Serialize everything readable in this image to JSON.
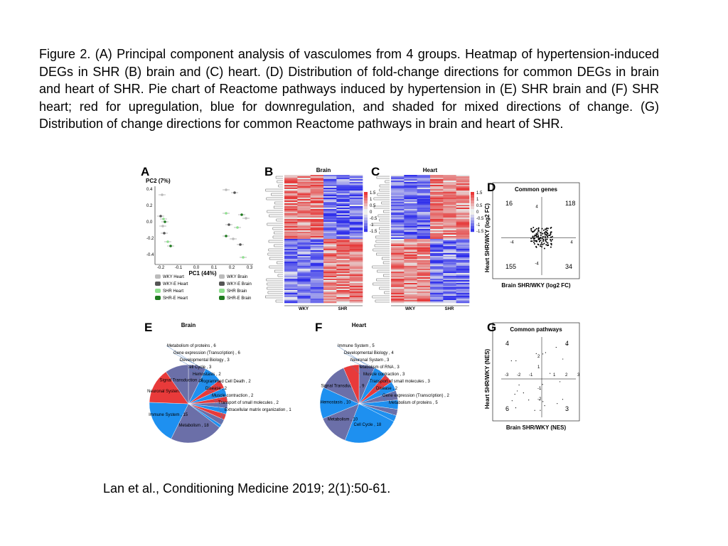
{
  "caption": "Figure 2. (A) Principal component analysis of vasculomes from 4 groups. Heatmap of hypertension-induced DEGs in SHR (B) brain and (C) heart. (D) Distribution of fold-change directions for common DEGs in brain and heart of SHR. Pie chart of Reactome pathways induced by hypertension in (E) SHR brain and (F) SHR heart; red for upregulation, blue for downregulation, and shaded for mixed directions of change. (G) Distribution of change directions for common Reactome pathways in brain and heart of SHR.",
  "citation": "Lan et al., Conditioning Medicine 2019; 2(1):50-61.",
  "panel_a": {
    "letter": "A",
    "y_label": "PC2 (7%)",
    "x_label": "PC1 (44%)",
    "yticks": [
      "0.4",
      "0.2",
      "0.0",
      "-0.2",
      "-0.4"
    ],
    "xticks": [
      "-0.2",
      "-0.1",
      "0.0",
      "0.1",
      "0.2",
      "0.3"
    ],
    "legend": [
      {
        "name": "WKY Heart",
        "color": "#bbbbbb"
      },
      {
        "name": "WKY-E Heart",
        "color": "#555555"
      },
      {
        "name": "SHR Heart",
        "color": "#8fe08f"
      },
      {
        "name": "SHR-E Heart",
        "color": "#1f7a1f"
      },
      {
        "name": "WKY Brain",
        "color": "#bbbbbb"
      },
      {
        "name": "WKY-E Brain",
        "color": "#555555"
      },
      {
        "name": "SHR Brain",
        "color": "#8fe08f"
      },
      {
        "name": "SHR-E Brain",
        "color": "#1f7a1f"
      }
    ]
  },
  "panel_b": {
    "letter": "B",
    "title": "Brain",
    "columns": [
      "WKY",
      "SHR"
    ],
    "scale": [
      "1.5",
      "1",
      "0.5",
      "0",
      "-0.5",
      "-1",
      "-1.5"
    ]
  },
  "panel_c": {
    "letter": "C",
    "title": "Heart",
    "columns": [
      "WKY",
      "SHR"
    ],
    "scale": [
      "1.5",
      "1",
      "0.5",
      "0",
      "-0.5",
      "-1",
      "-1.5"
    ]
  },
  "panel_d": {
    "letter": "D",
    "title": "Common genes",
    "x_label": "Brain SHR/WKY (log2 FC)",
    "y_label": "Heart SHR/WKY (log2 FC)",
    "counts": [
      "16",
      "118",
      "155",
      "34"
    ],
    "ticks": [
      "4",
      "-4",
      "-4",
      "4"
    ]
  },
  "panel_e": {
    "letter": "E",
    "title": "Brain",
    "slices": [
      {
        "label": "Metabolism of proteins , 6",
        "value": 6,
        "color": "#6b6fa8"
      },
      {
        "label": "Gene expression (Transcription) , 6",
        "value": 6,
        "color": "#1e90f0"
      },
      {
        "label": "Developmental Biology , 3",
        "value": 3,
        "color": "#e83a3a"
      },
      {
        "label": "Cell Cycle , 3",
        "value": 3,
        "color": "#1e90f0"
      },
      {
        "label": "Hemostasis , 2",
        "value": 2,
        "color": "#e83a3a"
      },
      {
        "label": "Programmed Cell Death , 2",
        "value": 2,
        "color": "#6b6fa8"
      },
      {
        "label": "Disease , 2",
        "value": 2,
        "color": "#1e90f0"
      },
      {
        "label": "Muscle contraction , 2",
        "value": 2,
        "color": "#e83a3a"
      },
      {
        "label": "Transport of small molecules , 2",
        "value": 2,
        "color": "#6b6fa8"
      },
      {
        "label": "Extracellular matrix organization , 1",
        "value": 1,
        "color": "#1e90f0"
      },
      {
        "label": "Metabolism , 18",
        "value": 18,
        "color": "#6b6fa8"
      },
      {
        "label": "Immune System , 15",
        "value": 15,
        "color": "#1e90f0"
      },
      {
        "label": "Neuronal System , 12",
        "value": 12,
        "color": "#e83a3a"
      },
      {
        "label": "Signal Transduction , 8",
        "value": 8,
        "color": "#6b6fa8"
      }
    ]
  },
  "panel_f": {
    "letter": "F",
    "title": "Heart",
    "slices": [
      {
        "label": "Immune System , 5",
        "value": 5,
        "color": "#6b6fa8"
      },
      {
        "label": "Developmental Biology , 4",
        "value": 4,
        "color": "#1e90f0"
      },
      {
        "label": "Neuronal System , 3",
        "value": 3,
        "color": "#e83a3a"
      },
      {
        "label": "Metabolism of RNA , 3",
        "value": 3,
        "color": "#1e90f0"
      },
      {
        "label": "Muscle contraction , 3",
        "value": 3,
        "color": "#6b6fa8"
      },
      {
        "label": "Transport of small molecules , 3",
        "value": 3,
        "color": "#1e90f0"
      },
      {
        "label": "Disease , 2",
        "value": 2,
        "color": "#6b6fa8"
      },
      {
        "label": "Gene expression (Transcription) , 2",
        "value": 2,
        "color": "#1e90f0"
      },
      {
        "label": "Cell Cycle , 18",
        "value": 18,
        "color": "#1e90f0"
      },
      {
        "label": "Metabolism , 10",
        "value": 10,
        "color": "#6b6fa8"
      },
      {
        "label": "Hemostasis , 10",
        "value": 10,
        "color": "#1e90f0"
      },
      {
        "label": "Signal Transduction , 9",
        "value": 9,
        "color": "#6b6fa8"
      },
      {
        "label": "Metabolism of proteins , 5",
        "value": 5,
        "color": "#e83a3a"
      }
    ]
  },
  "panel_g": {
    "letter": "G",
    "title": "Common pathways",
    "x_label": "Brain SHR/WKY (NES)",
    "y_label": "Heart SHR/WKY (NES)",
    "counts": [
      "4",
      "4",
      "6",
      "3"
    ],
    "yticks": [
      "2",
      "1",
      "-1",
      "-2"
    ],
    "xticks": [
      "-3",
      "-2",
      "-1",
      "1",
      "2",
      "3"
    ]
  }
}
